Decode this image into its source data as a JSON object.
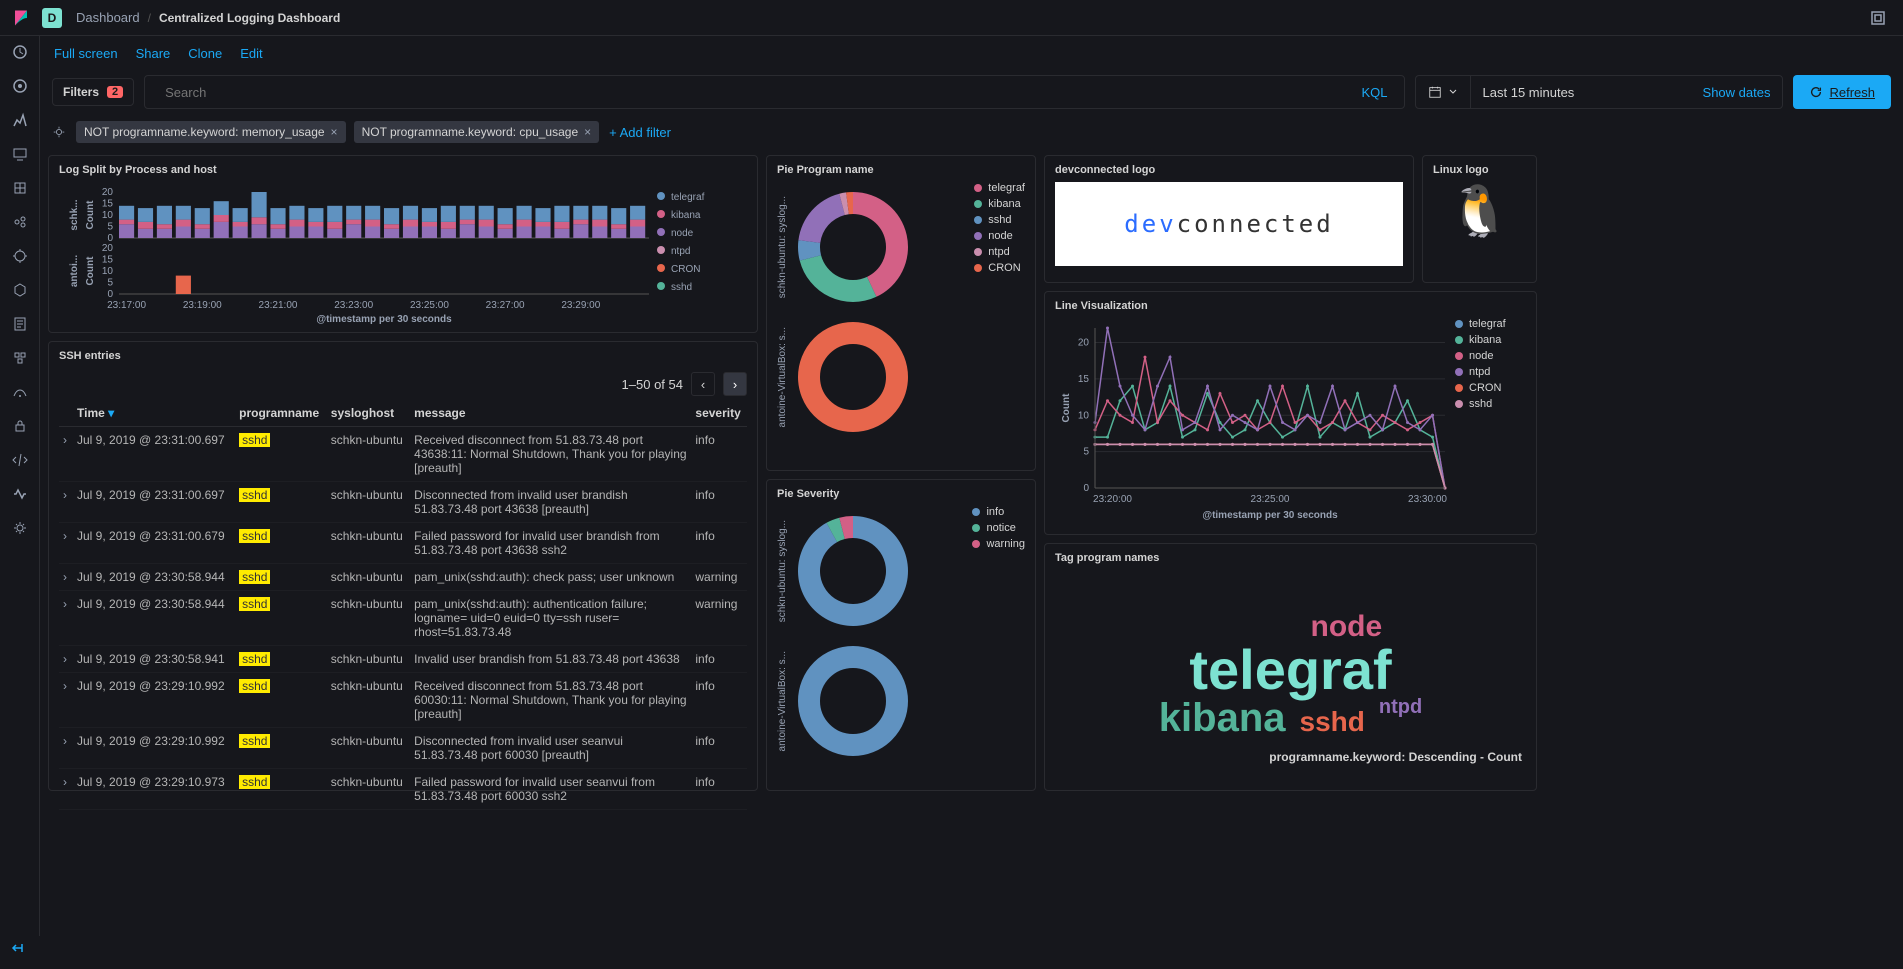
{
  "breadcrumb": {
    "section": "Dashboard",
    "title": "Centralized Logging Dashboard"
  },
  "toolbar": {
    "fullscreen": "Full screen",
    "share": "Share",
    "clone": "Clone",
    "edit": "Edit"
  },
  "filters": {
    "label": "Filters",
    "count": "2",
    "search_placeholder": "Search",
    "kql": "KQL",
    "pills": [
      "NOT programname.keyword: memory_usage",
      "NOT programname.keyword: cpu_usage"
    ],
    "add": "+ Add filter"
  },
  "time": {
    "range": "Last 15 minutes",
    "show_dates": "Show dates",
    "refresh": "Refresh"
  },
  "panel_bar": {
    "title": "Log Split by Process and host",
    "xaxis_label": "@timestamp per 30 seconds",
    "yaxis_label": "Count",
    "xticks": [
      "23:17:00",
      "23:19:00",
      "23:21:00",
      "23:23:00",
      "23:25:00",
      "23:27:00",
      "23:29:00"
    ],
    "yticks": [
      "0",
      "5",
      "10",
      "15",
      "20"
    ],
    "legend": [
      {
        "label": "telegraf",
        "color": "#6092c0"
      },
      {
        "label": "kibana",
        "color": "#d36086"
      },
      {
        "label": "node",
        "color": "#9170b8"
      },
      {
        "label": "ntpd",
        "color": "#ca8eae"
      },
      {
        "label": "CRON",
        "color": "#e7664c"
      },
      {
        "label": "sshd",
        "color": "#54b399"
      }
    ],
    "hosts": [
      "schk...",
      "antoi..."
    ],
    "bars_top": [
      {
        "x": 0,
        "stacks": [
          {
            "h": 6,
            "c": "#9170b8"
          },
          {
            "h": 2,
            "c": "#d36086"
          },
          {
            "h": 6,
            "c": "#6092c0"
          }
        ]
      },
      {
        "x": 1,
        "stacks": [
          {
            "h": 4,
            "c": "#9170b8"
          },
          {
            "h": 3,
            "c": "#d36086"
          },
          {
            "h": 6,
            "c": "#6092c0"
          }
        ]
      },
      {
        "x": 2,
        "stacks": [
          {
            "h": 4,
            "c": "#9170b8"
          },
          {
            "h": 2,
            "c": "#d36086"
          },
          {
            "h": 8,
            "c": "#6092c0"
          }
        ]
      },
      {
        "x": 3,
        "stacks": [
          {
            "h": 5,
            "c": "#9170b8"
          },
          {
            "h": 3,
            "c": "#d36086"
          },
          {
            "h": 6,
            "c": "#6092c0"
          }
        ]
      },
      {
        "x": 4,
        "stacks": [
          {
            "h": 4,
            "c": "#9170b8"
          },
          {
            "h": 2,
            "c": "#d36086"
          },
          {
            "h": 7,
            "c": "#6092c0"
          }
        ]
      },
      {
        "x": 5,
        "stacks": [
          {
            "h": 7,
            "c": "#9170b8"
          },
          {
            "h": 3,
            "c": "#d36086"
          },
          {
            "h": 6,
            "c": "#6092c0"
          }
        ]
      },
      {
        "x": 6,
        "stacks": [
          {
            "h": 5,
            "c": "#9170b8"
          },
          {
            "h": 2,
            "c": "#d36086"
          },
          {
            "h": 6,
            "c": "#6092c0"
          }
        ]
      },
      {
        "x": 7,
        "stacks": [
          {
            "h": 6,
            "c": "#9170b8"
          },
          {
            "h": 3,
            "c": "#d36086"
          },
          {
            "h": 11,
            "c": "#6092c0"
          }
        ]
      },
      {
        "x": 8,
        "stacks": [
          {
            "h": 4,
            "c": "#9170b8"
          },
          {
            "h": 2,
            "c": "#d36086"
          },
          {
            "h": 7,
            "c": "#6092c0"
          }
        ]
      },
      {
        "x": 9,
        "stacks": [
          {
            "h": 5,
            "c": "#9170b8"
          },
          {
            "h": 3,
            "c": "#d36086"
          },
          {
            "h": 6,
            "c": "#6092c0"
          }
        ]
      },
      {
        "x": 10,
        "stacks": [
          {
            "h": 5,
            "c": "#9170b8"
          },
          {
            "h": 2,
            "c": "#d36086"
          },
          {
            "h": 6,
            "c": "#6092c0"
          }
        ]
      },
      {
        "x": 11,
        "stacks": [
          {
            "h": 4,
            "c": "#9170b8"
          },
          {
            "h": 3,
            "c": "#d36086"
          },
          {
            "h": 7,
            "c": "#6092c0"
          }
        ]
      },
      {
        "x": 12,
        "stacks": [
          {
            "h": 6,
            "c": "#9170b8"
          },
          {
            "h": 2,
            "c": "#d36086"
          },
          {
            "h": 6,
            "c": "#6092c0"
          }
        ]
      },
      {
        "x": 13,
        "stacks": [
          {
            "h": 5,
            "c": "#9170b8"
          },
          {
            "h": 3,
            "c": "#d36086"
          },
          {
            "h": 6,
            "c": "#6092c0"
          }
        ]
      },
      {
        "x": 14,
        "stacks": [
          {
            "h": 4,
            "c": "#9170b8"
          },
          {
            "h": 2,
            "c": "#d36086"
          },
          {
            "h": 7,
            "c": "#6092c0"
          }
        ]
      },
      {
        "x": 15,
        "stacks": [
          {
            "h": 5,
            "c": "#9170b8"
          },
          {
            "h": 3,
            "c": "#d36086"
          },
          {
            "h": 6,
            "c": "#6092c0"
          }
        ]
      },
      {
        "x": 16,
        "stacks": [
          {
            "h": 5,
            "c": "#9170b8"
          },
          {
            "h": 2,
            "c": "#d36086"
          },
          {
            "h": 6,
            "c": "#6092c0"
          }
        ]
      },
      {
        "x": 17,
        "stacks": [
          {
            "h": 4,
            "c": "#9170b8"
          },
          {
            "h": 3,
            "c": "#d36086"
          },
          {
            "h": 7,
            "c": "#6092c0"
          }
        ]
      },
      {
        "x": 18,
        "stacks": [
          {
            "h": 6,
            "c": "#9170b8"
          },
          {
            "h": 2,
            "c": "#d36086"
          },
          {
            "h": 6,
            "c": "#6092c0"
          }
        ]
      },
      {
        "x": 19,
        "stacks": [
          {
            "h": 5,
            "c": "#9170b8"
          },
          {
            "h": 3,
            "c": "#d36086"
          },
          {
            "h": 6,
            "c": "#6092c0"
          }
        ]
      },
      {
        "x": 20,
        "stacks": [
          {
            "h": 4,
            "c": "#9170b8"
          },
          {
            "h": 2,
            "c": "#d36086"
          },
          {
            "h": 7,
            "c": "#6092c0"
          }
        ]
      },
      {
        "x": 21,
        "stacks": [
          {
            "h": 5,
            "c": "#9170b8"
          },
          {
            "h": 3,
            "c": "#d36086"
          },
          {
            "h": 6,
            "c": "#6092c0"
          }
        ]
      },
      {
        "x": 22,
        "stacks": [
          {
            "h": 5,
            "c": "#9170b8"
          },
          {
            "h": 2,
            "c": "#d36086"
          },
          {
            "h": 6,
            "c": "#6092c0"
          }
        ]
      },
      {
        "x": 23,
        "stacks": [
          {
            "h": 4,
            "c": "#9170b8"
          },
          {
            "h": 3,
            "c": "#d36086"
          },
          {
            "h": 7,
            "c": "#6092c0"
          }
        ]
      },
      {
        "x": 24,
        "stacks": [
          {
            "h": 6,
            "c": "#9170b8"
          },
          {
            "h": 2,
            "c": "#d36086"
          },
          {
            "h": 6,
            "c": "#6092c0"
          }
        ]
      },
      {
        "x": 25,
        "stacks": [
          {
            "h": 5,
            "c": "#9170b8"
          },
          {
            "h": 3,
            "c": "#d36086"
          },
          {
            "h": 6,
            "c": "#6092c0"
          }
        ]
      },
      {
        "x": 26,
        "stacks": [
          {
            "h": 4,
            "c": "#9170b8"
          },
          {
            "h": 2,
            "c": "#d36086"
          },
          {
            "h": 7,
            "c": "#6092c0"
          }
        ]
      },
      {
        "x": 27,
        "stacks": [
          {
            "h": 5,
            "c": "#9170b8"
          },
          {
            "h": 3,
            "c": "#d36086"
          },
          {
            "h": 6,
            "c": "#6092c0"
          }
        ]
      }
    ],
    "bars_bottom": [
      {
        "x": 3,
        "stacks": [
          {
            "h": 8,
            "c": "#e7664c"
          }
        ]
      }
    ]
  },
  "panel_pie_prog": {
    "title": "Pie Program name",
    "host_labels": [
      "schkn-ubuntu: syslog...",
      "antoine-VirtualBox: s..."
    ],
    "legend": [
      {
        "label": "telegraf",
        "color": "#d36086"
      },
      {
        "label": "kibana",
        "color": "#54b399"
      },
      {
        "label": "sshd",
        "color": "#6092c0"
      },
      {
        "label": "node",
        "color": "#9170b8"
      },
      {
        "label": "ntpd",
        "color": "#ca8eae"
      },
      {
        "label": "CRON",
        "color": "#e7664c"
      }
    ],
    "donut1": [
      {
        "pct": 43,
        "color": "#d36086"
      },
      {
        "pct": 28,
        "color": "#54b399"
      },
      {
        "pct": 6,
        "color": "#6092c0"
      },
      {
        "pct": 19,
        "color": "#9170b8"
      },
      {
        "pct": 2,
        "color": "#ca8eae"
      },
      {
        "pct": 2,
        "color": "#e7664c"
      }
    ],
    "donut2": [
      {
        "pct": 100,
        "color": "#e7664c"
      }
    ]
  },
  "panel_logo": {
    "title": "devconnected logo",
    "prefix": "dev",
    "suffix": "connected"
  },
  "panel_linux": {
    "title": "Linux logo"
  },
  "panel_line": {
    "title": "Line Visualization",
    "xaxis_label": "@timestamp per 30 seconds",
    "yaxis_label": "Count",
    "xticks": [
      "23:20:00",
      "23:25:00",
      "23:30:00"
    ],
    "yticks": [
      "0",
      "5",
      "10",
      "15",
      "20"
    ],
    "legend": [
      {
        "label": "telegraf",
        "color": "#6092c0"
      },
      {
        "label": "kibana",
        "color": "#54b399"
      },
      {
        "label": "node",
        "color": "#d36086"
      },
      {
        "label": "ntpd",
        "color": "#9170b8"
      },
      {
        "label": "CRON",
        "color": "#e7664c"
      },
      {
        "label": "sshd",
        "color": "#ca8eae"
      }
    ],
    "series": {
      "telegraf": [
        6,
        6,
        6,
        6,
        6,
        6,
        6,
        6,
        6,
        6,
        6,
        6,
        6,
        6,
        6,
        6,
        6,
        6,
        6,
        6,
        6,
        6,
        6,
        6,
        6,
        6,
        6,
        6,
        0
      ],
      "kibana": [
        7,
        7,
        12,
        14,
        8,
        9,
        14,
        7,
        8,
        13,
        9,
        7,
        8,
        12,
        9,
        7,
        8,
        14,
        7,
        9,
        8,
        13,
        7,
        8,
        9,
        12,
        8,
        7,
        0
      ],
      "node": [
        8,
        12,
        10,
        9,
        18,
        9,
        12,
        10,
        9,
        8,
        13,
        9,
        10,
        8,
        9,
        14,
        9,
        10,
        8,
        9,
        12,
        9,
        8,
        10,
        9,
        8,
        9,
        10,
        0
      ],
      "ntpd": [
        9,
        22,
        14,
        10,
        8,
        14,
        18,
        8,
        9,
        14,
        8,
        10,
        9,
        8,
        14,
        9,
        8,
        10,
        9,
        14,
        8,
        9,
        10,
        8,
        14,
        9,
        8,
        10,
        0
      ],
      "CRON": [
        6,
        6,
        6,
        6,
        6,
        6,
        6,
        6,
        6,
        6,
        6,
        6,
        6,
        6,
        6,
        6,
        6,
        6,
        6,
        6,
        6,
        6,
        6,
        6,
        6,
        6,
        6,
        6,
        0
      ],
      "sshd": [
        6,
        6,
        6,
        6,
        6,
        6,
        6,
        6,
        6,
        6,
        6,
        6,
        6,
        6,
        6,
        6,
        6,
        6,
        6,
        6,
        6,
        6,
        6,
        6,
        6,
        6,
        6,
        6,
        0
      ]
    }
  },
  "panel_sev": {
    "title": "Pie Severity",
    "host_labels": [
      "schkn-ubuntu: syslog...",
      "antoine-VirtualBox: s..."
    ],
    "legend": [
      {
        "label": "info",
        "color": "#6092c0"
      },
      {
        "label": "notice",
        "color": "#54b399"
      },
      {
        "label": "warning",
        "color": "#d36086"
      }
    ],
    "donut1": [
      {
        "pct": 92,
        "color": "#6092c0"
      },
      {
        "pct": 4,
        "color": "#54b399"
      },
      {
        "pct": 4,
        "color": "#d36086"
      }
    ],
    "donut2": [
      {
        "pct": 100,
        "color": "#6092c0"
      }
    ]
  },
  "panel_cloud": {
    "title": "Tag program names",
    "subtitle": "programname.keyword: Descending - Count",
    "tags": [
      {
        "label": "node",
        "size": 30,
        "color": "#d36086"
      },
      {
        "label": "telegraf",
        "size": 56,
        "color": "#7de2d1"
      },
      {
        "label": "kibana",
        "size": 40,
        "color": "#54b399"
      },
      {
        "label": "ntpd",
        "size": 20,
        "color": "#9170b8"
      },
      {
        "label": "sshd",
        "size": 28,
        "color": "#e7664c"
      }
    ]
  },
  "table": {
    "title": "SSH entries",
    "pagination": "1–50 of 54",
    "columns": [
      "Time",
      "programname",
      "sysloghost",
      "message",
      "severity"
    ],
    "rows": [
      {
        "time": "Jul 9, 2019 @ 23:31:00.697",
        "prog": "sshd",
        "host": "schkn-ubuntu",
        "msg": "   Received disconnect from 51.83.73.48 port 43638:11: Normal Shutdown, Thank you for playing [preauth]",
        "sev": "info"
      },
      {
        "time": "Jul 9, 2019 @ 23:31:00.697",
        "prog": "sshd",
        "host": "schkn-ubuntu",
        "msg": "   Disconnected from invalid user brandish 51.83.73.48 port 43638 [preauth]",
        "sev": "info"
      },
      {
        "time": "Jul 9, 2019 @ 23:31:00.679",
        "prog": "sshd",
        "host": "schkn-ubuntu",
        "msg": "   Failed password for invalid user brandish from 51.83.73.48 port 43638 ssh2",
        "sev": "info"
      },
      {
        "time": "Jul 9, 2019 @ 23:30:58.944",
        "prog": "sshd",
        "host": "schkn-ubuntu",
        "msg": "pam_unix(sshd:auth): check pass; user unknown",
        "sev": "warning"
      },
      {
        "time": "Jul 9, 2019 @ 23:30:58.944",
        "prog": "sshd",
        "host": "schkn-ubuntu",
        "msg": "pam_unix(sshd:auth): authentication failure; logname= uid=0 euid=0 tty=ssh ruser= rhost=51.83.73.48",
        "sev": "warning"
      },
      {
        "time": "Jul 9, 2019 @ 23:30:58.941",
        "prog": "sshd",
        "host": "schkn-ubuntu",
        "msg": "Invalid user brandish from 51.83.73.48 port 43638",
        "sev": "info"
      },
      {
        "time": "Jul 9, 2019 @ 23:29:10.992",
        "prog": "sshd",
        "host": "schkn-ubuntu",
        "msg": "   Received disconnect from 51.83.73.48 port 60030:11: Normal Shutdown, Thank you for playing [preauth]",
        "sev": "info"
      },
      {
        "time": "Jul 9, 2019 @ 23:29:10.992",
        "prog": "sshd",
        "host": "schkn-ubuntu",
        "msg": "   Disconnected from invalid user seanvui 51.83.73.48 port 60030 [preauth]",
        "sev": "info"
      },
      {
        "time": "Jul 9, 2019 @ 23:29:10.973",
        "prog": "sshd",
        "host": "schkn-ubuntu",
        "msg": "   Failed password for invalid user seanvui from 51.83.73.48 port 60030 ssh2",
        "sev": "info"
      }
    ]
  }
}
